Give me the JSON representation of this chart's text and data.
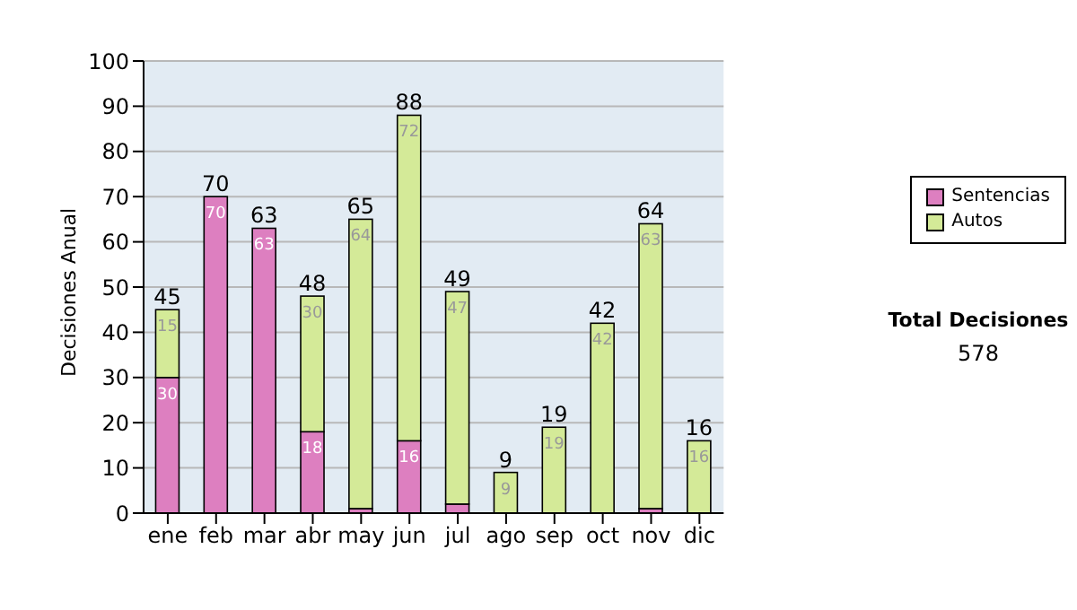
{
  "chart_data": {
    "type": "bar",
    "ylabel": "Decisiones Anual",
    "categories": [
      "ene",
      "feb",
      "mar",
      "abr",
      "may",
      "jun",
      "jul",
      "ago",
      "sep",
      "oct",
      "nov",
      "dic"
    ],
    "stacked": true,
    "series": [
      {
        "name": "Sentencias",
        "color": "#dd7fc0",
        "values": [
          30,
          70,
          63,
          18,
          1,
          16,
          2,
          0,
          0,
          0,
          1,
          0
        ],
        "value_labels": [
          "30",
          "70",
          "63",
          "18",
          null,
          "16",
          null,
          null,
          null,
          null,
          null,
          null
        ]
      },
      {
        "name": "Autos",
        "color": "#d4ea98",
        "values": [
          15,
          0,
          0,
          30,
          64,
          72,
          47,
          9,
          19,
          42,
          63,
          16
        ],
        "value_labels": [
          "15",
          null,
          null,
          "30",
          "64",
          "72",
          "47",
          "9",
          "19",
          "42",
          "63",
          "16"
        ]
      }
    ],
    "totals": [
      "45",
      "70",
      "63",
      "48",
      "65",
      "88",
      "49",
      "9",
      "19",
      "42",
      "64",
      "16"
    ],
    "ylim": [
      0,
      100
    ],
    "yticks": [
      0,
      10,
      20,
      30,
      40,
      50,
      60,
      70,
      80,
      90,
      100
    ],
    "grid": "y",
    "legend": "right",
    "annotations": [
      "Total Decisiones",
      "578"
    ]
  }
}
